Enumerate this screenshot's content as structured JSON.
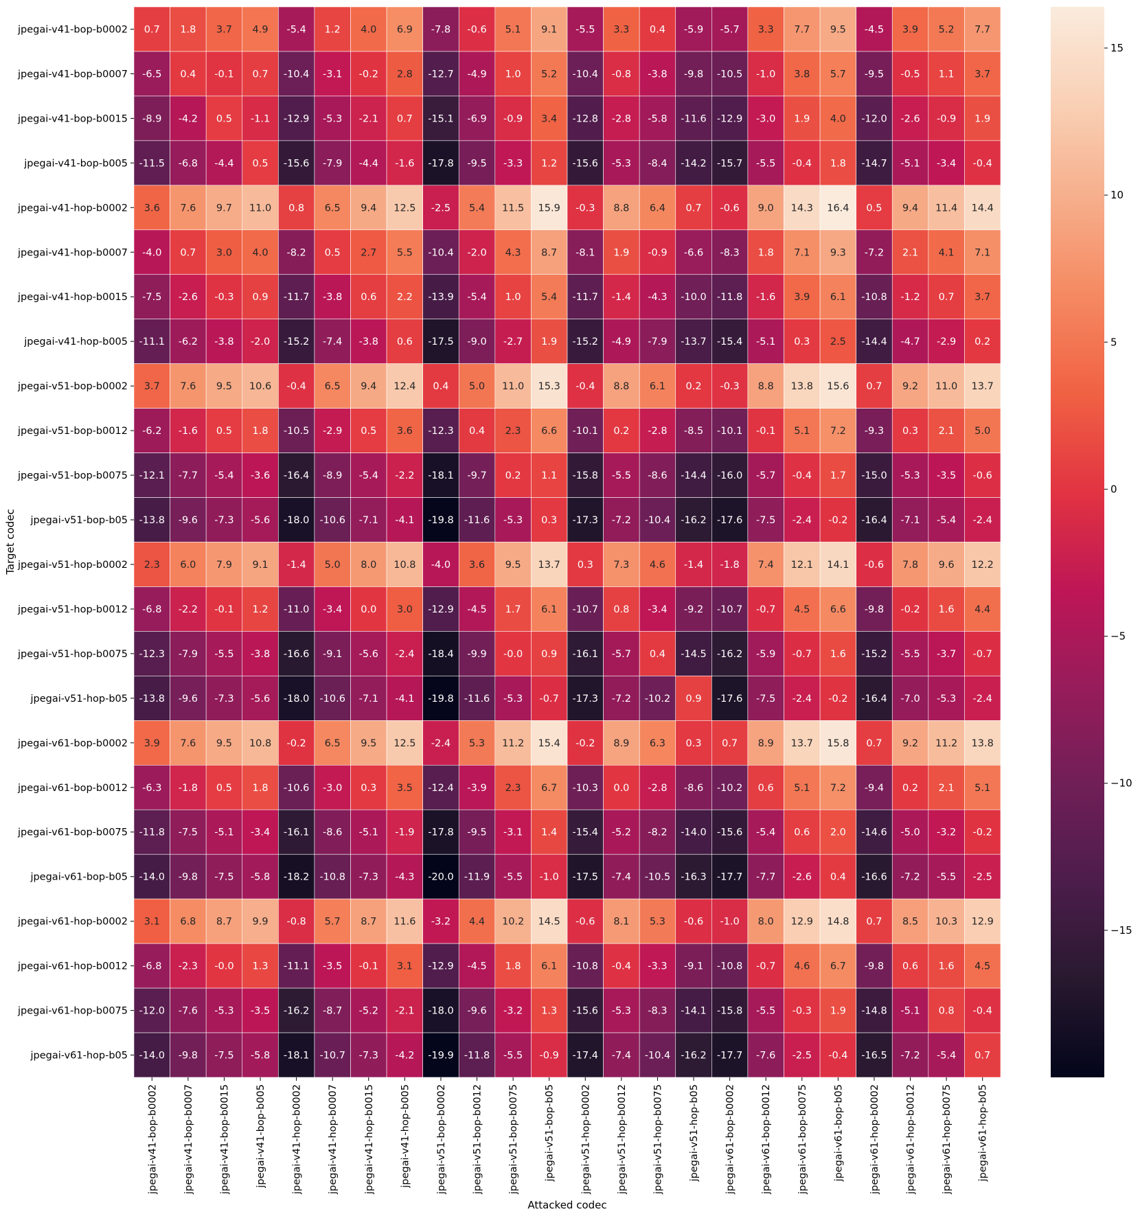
{
  "chart_data": {
    "type": "heatmap",
    "xlabel": "Attacked codec",
    "ylabel": "Target codec",
    "x_categories": [
      "jpegai-v41-bop-b0002",
      "jpegai-v41-bop-b0007",
      "jpegai-v41-bop-b0015",
      "jpegai-v41-bop-b005",
      "jpegai-v41-hop-b0002",
      "jpegai-v41-hop-b0007",
      "jpegai-v41-hop-b0015",
      "jpegai-v41-hop-b005",
      "jpegai-v51-bop-b0002",
      "jpegai-v51-bop-b0012",
      "jpegai-v51-bop-b0075",
      "jpegai-v51-bop-b05",
      "jpegai-v51-hop-b0002",
      "jpegai-v51-hop-b0012",
      "jpegai-v51-hop-b0075",
      "jpegai-v51-hop-b05",
      "jpegai-v61-bop-b0002",
      "jpegai-v61-bop-b0012",
      "jpegai-v61-bop-b0075",
      "jpegai-v61-bop-b05",
      "jpegai-v61-hop-b0002",
      "jpegai-v61-hop-b0012",
      "jpegai-v61-hop-b0075",
      "jpegai-v61-hop-b05"
    ],
    "y_categories": [
      "jpegai-v41-bop-b0002",
      "jpegai-v41-bop-b0007",
      "jpegai-v41-bop-b0015",
      "jpegai-v41-bop-b005",
      "jpegai-v41-hop-b0002",
      "jpegai-v41-hop-b0007",
      "jpegai-v41-hop-b0015",
      "jpegai-v41-hop-b005",
      "jpegai-v51-bop-b0002",
      "jpegai-v51-bop-b0012",
      "jpegai-v51-bop-b0075",
      "jpegai-v51-bop-b05",
      "jpegai-v51-hop-b0002",
      "jpegai-v51-hop-b0012",
      "jpegai-v51-hop-b0075",
      "jpegai-v51-hop-b05",
      "jpegai-v61-bop-b0002",
      "jpegai-v61-bop-b0012",
      "jpegai-v61-bop-b0075",
      "jpegai-v61-bop-b05",
      "jpegai-v61-hop-b0002",
      "jpegai-v61-hop-b0012",
      "jpegai-v61-hop-b0075",
      "jpegai-v61-hop-b05"
    ],
    "values": [
      [
        "0.7",
        "1.8",
        "3.7",
        "4.9",
        "-5.4",
        "1.2",
        "4.0",
        "6.9",
        "-7.8",
        "-0.6",
        "5.1",
        "9.1",
        "-5.5",
        "3.3",
        "0.4",
        "-5.9",
        "-5.7",
        "3.3",
        "7.7",
        "9.5",
        "-4.5",
        "3.9",
        "5.2",
        "7.7"
      ],
      [
        "-6.5",
        "0.4",
        "-0.1",
        "0.7",
        "-10.4",
        "-3.1",
        "-0.2",
        "2.8",
        "-12.7",
        "-4.9",
        "1.0",
        "5.2",
        "-10.4",
        "-0.8",
        "-3.8",
        "-9.8",
        "-10.5",
        "-1.0",
        "3.8",
        "5.7",
        "-9.5",
        "-0.5",
        "1.1",
        "3.7"
      ],
      [
        "-8.9",
        "-4.2",
        "0.5",
        "-1.1",
        "-12.9",
        "-5.3",
        "-2.1",
        "0.7",
        "-15.1",
        "-6.9",
        "-0.9",
        "3.4",
        "-12.8",
        "-2.8",
        "-5.8",
        "-11.6",
        "-12.9",
        "-3.0",
        "1.9",
        "4.0",
        "-12.0",
        "-2.6",
        "-0.9",
        "1.9"
      ],
      [
        "-11.5",
        "-6.8",
        "-4.4",
        "0.5",
        "-15.6",
        "-7.9",
        "-4.4",
        "-1.6",
        "-17.8",
        "-9.5",
        "-3.3",
        "1.2",
        "-15.6",
        "-5.3",
        "-8.4",
        "-14.2",
        "-15.7",
        "-5.5",
        "-0.4",
        "1.8",
        "-14.7",
        "-5.1",
        "-3.4",
        "-0.4"
      ],
      [
        "3.6",
        "7.6",
        "9.7",
        "11.0",
        "0.8",
        "6.5",
        "9.4",
        "12.5",
        "-2.5",
        "5.4",
        "11.5",
        "15.9",
        "-0.3",
        "8.8",
        "6.4",
        "0.7",
        "-0.6",
        "9.0",
        "14.3",
        "16.4",
        "0.5",
        "9.4",
        "11.4",
        "14.4"
      ],
      [
        "-4.0",
        "0.7",
        "3.0",
        "4.0",
        "-8.2",
        "0.5",
        "2.7",
        "5.5",
        "-10.4",
        "-2.0",
        "4.3",
        "8.7",
        "-8.1",
        "1.9",
        "-0.9",
        "-6.6",
        "-8.3",
        "1.8",
        "7.1",
        "9.3",
        "-7.2",
        "2.1",
        "4.1",
        "7.1"
      ],
      [
        "-7.5",
        "-2.6",
        "-0.3",
        "0.9",
        "-11.7",
        "-3.8",
        "0.6",
        "2.2",
        "-13.9",
        "-5.4",
        "1.0",
        "5.4",
        "-11.7",
        "-1.4",
        "-4.3",
        "-10.0",
        "-11.8",
        "-1.6",
        "3.9",
        "6.1",
        "-10.8",
        "-1.2",
        "0.7",
        "3.7"
      ],
      [
        "-11.1",
        "-6.2",
        "-3.8",
        "-2.0",
        "-15.2",
        "-7.4",
        "-3.8",
        "0.6",
        "-17.5",
        "-9.0",
        "-2.7",
        "1.9",
        "-15.2",
        "-4.9",
        "-7.9",
        "-13.7",
        "-15.4",
        "-5.1",
        "0.3",
        "2.5",
        "-14.4",
        "-4.7",
        "-2.9",
        "0.2"
      ],
      [
        "3.7",
        "7.6",
        "9.5",
        "10.6",
        "-0.4",
        "6.5",
        "9.4",
        "12.4",
        "0.4",
        "5.0",
        "11.0",
        "15.3",
        "-0.4",
        "8.8",
        "6.1",
        "0.2",
        "-0.3",
        "8.8",
        "13.8",
        "15.6",
        "0.7",
        "9.2",
        "11.0",
        "13.7"
      ],
      [
        "-6.2",
        "-1.6",
        "0.5",
        "1.8",
        "-10.5",
        "-2.9",
        "0.5",
        "3.6",
        "-12.3",
        "0.4",
        "2.3",
        "6.6",
        "-10.1",
        "0.2",
        "-2.8",
        "-8.5",
        "-10.1",
        "-0.1",
        "5.1",
        "7.2",
        "-9.3",
        "0.3",
        "2.1",
        "5.0"
      ],
      [
        "-12.1",
        "-7.7",
        "-5.4",
        "-3.6",
        "-16.4",
        "-8.9",
        "-5.4",
        "-2.2",
        "-18.1",
        "-9.7",
        "0.2",
        "1.1",
        "-15.8",
        "-5.5",
        "-8.6",
        "-14.4",
        "-16.0",
        "-5.7",
        "-0.4",
        "1.7",
        "-15.0",
        "-5.3",
        "-3.5",
        "-0.6"
      ],
      [
        "-13.8",
        "-9.6",
        "-7.3",
        "-5.6",
        "-18.0",
        "-10.6",
        "-7.1",
        "-4.1",
        "-19.8",
        "-11.6",
        "-5.3",
        "0.3",
        "-17.3",
        "-7.2",
        "-10.4",
        "-16.2",
        "-17.6",
        "-7.5",
        "-2.4",
        "-0.2",
        "-16.4",
        "-7.1",
        "-5.4",
        "-2.4"
      ],
      [
        "2.3",
        "6.0",
        "7.9",
        "9.1",
        "-1.4",
        "5.0",
        "8.0",
        "10.8",
        "-4.0",
        "3.6",
        "9.5",
        "13.7",
        "0.3",
        "7.3",
        "4.6",
        "-1.4",
        "-1.8",
        "7.4",
        "12.1",
        "14.1",
        "-0.6",
        "7.8",
        "9.6",
        "12.2"
      ],
      [
        "-6.8",
        "-2.2",
        "-0.1",
        "1.2",
        "-11.0",
        "-3.4",
        "0.0",
        "3.0",
        "-12.9",
        "-4.5",
        "1.7",
        "6.1",
        "-10.7",
        "0.8",
        "-3.4",
        "-9.2",
        "-10.7",
        "-0.7",
        "4.5",
        "6.6",
        "-9.8",
        "-0.2",
        "1.6",
        "4.4"
      ],
      [
        "-12.3",
        "-7.9",
        "-5.5",
        "-3.8",
        "-16.6",
        "-9.1",
        "-5.6",
        "-2.4",
        "-18.4",
        "-9.9",
        "-0.0",
        "0.9",
        "-16.1",
        "-5.7",
        "0.4",
        "-14.5",
        "-16.2",
        "-5.9",
        "-0.7",
        "1.6",
        "-15.2",
        "-5.5",
        "-3.7",
        "-0.7"
      ],
      [
        "-13.8",
        "-9.6",
        "-7.3",
        "-5.6",
        "-18.0",
        "-10.6",
        "-7.1",
        "-4.1",
        "-19.8",
        "-11.6",
        "-5.3",
        "-0.7",
        "-17.3",
        "-7.2",
        "-10.2",
        "0.9",
        "-17.6",
        "-7.5",
        "-2.4",
        "-0.2",
        "-16.4",
        "-7.0",
        "-5.3",
        "-2.4"
      ],
      [
        "3.9",
        "7.6",
        "9.5",
        "10.8",
        "-0.2",
        "6.5",
        "9.5",
        "12.5",
        "-2.4",
        "5.3",
        "11.2",
        "15.4",
        "-0.2",
        "8.9",
        "6.3",
        "0.3",
        "0.7",
        "8.9",
        "13.7",
        "15.8",
        "0.7",
        "9.2",
        "11.2",
        "13.8"
      ],
      [
        "-6.3",
        "-1.8",
        "0.5",
        "1.8",
        "-10.6",
        "-3.0",
        "0.3",
        "3.5",
        "-12.4",
        "-3.9",
        "2.3",
        "6.7",
        "-10.3",
        "0.0",
        "-2.8",
        "-8.6",
        "-10.2",
        "0.6",
        "5.1",
        "7.2",
        "-9.4",
        "0.2",
        "2.1",
        "5.1"
      ],
      [
        "-11.8",
        "-7.5",
        "-5.1",
        "-3.4",
        "-16.1",
        "-8.6",
        "-5.1",
        "-1.9",
        "-17.8",
        "-9.5",
        "-3.1",
        "1.4",
        "-15.4",
        "-5.2",
        "-8.2",
        "-14.0",
        "-15.6",
        "-5.4",
        "0.6",
        "2.0",
        "-14.6",
        "-5.0",
        "-3.2",
        "-0.2"
      ],
      [
        "-14.0",
        "-9.8",
        "-7.5",
        "-5.8",
        "-18.2",
        "-10.8",
        "-7.3",
        "-4.3",
        "-20.0",
        "-11.9",
        "-5.5",
        "-1.0",
        "-17.5",
        "-7.4",
        "-10.5",
        "-16.3",
        "-17.7",
        "-7.7",
        "-2.6",
        "0.4",
        "-16.6",
        "-7.2",
        "-5.5",
        "-2.5"
      ],
      [
        "3.1",
        "6.8",
        "8.7",
        "9.9",
        "-0.8",
        "5.7",
        "8.7",
        "11.6",
        "-3.2",
        "4.4",
        "10.2",
        "14.5",
        "-0.6",
        "8.1",
        "5.3",
        "-0.6",
        "-1.0",
        "8.0",
        "12.9",
        "14.8",
        "0.7",
        "8.5",
        "10.3",
        "12.9"
      ],
      [
        "-6.8",
        "-2.3",
        "-0.0",
        "1.3",
        "-11.1",
        "-3.5",
        "-0.1",
        "3.1",
        "-12.9",
        "-4.5",
        "1.8",
        "6.1",
        "-10.8",
        "-0.4",
        "-3.3",
        "-9.1",
        "-10.8",
        "-0.7",
        "4.6",
        "6.7",
        "-9.8",
        "0.6",
        "1.6",
        "4.5"
      ],
      [
        "-12.0",
        "-7.6",
        "-5.3",
        "-3.5",
        "-16.2",
        "-8.7",
        "-5.2",
        "-2.1",
        "-18.0",
        "-9.6",
        "-3.2",
        "1.3",
        "-15.6",
        "-5.3",
        "-8.3",
        "-14.1",
        "-15.8",
        "-5.5",
        "-0.3",
        "1.9",
        "-14.8",
        "-5.1",
        "0.8",
        "-0.4"
      ],
      [
        "-14.0",
        "-9.8",
        "-7.5",
        "-5.8",
        "-18.1",
        "-10.7",
        "-7.3",
        "-4.2",
        "-19.9",
        "-11.8",
        "-5.5",
        "-0.9",
        "-17.4",
        "-7.4",
        "-10.4",
        "-16.2",
        "-17.7",
        "-7.6",
        "-2.5",
        "-0.4",
        "-16.5",
        "-7.2",
        "-5.4",
        "0.7"
      ]
    ],
    "colorbar": {
      "vmin": -20.0,
      "vmax": 16.4,
      "ticks": [
        15,
        10,
        5,
        0,
        -5,
        -10,
        -15
      ],
      "tick_labels": [
        "15",
        "10",
        "5",
        "0",
        "−5",
        "−10",
        "−15"
      ]
    },
    "colormap": "rocket",
    "colormap_stops": [
      "#03051a",
      "#28192f",
      "#4c1d4b",
      "#701f57",
      "#971c5b",
      "#be1656",
      "#e13342",
      "#f06043",
      "#f58860",
      "#f6ad8a",
      "#f9d0b5",
      "#faebdd"
    ],
    "grid": false
  }
}
